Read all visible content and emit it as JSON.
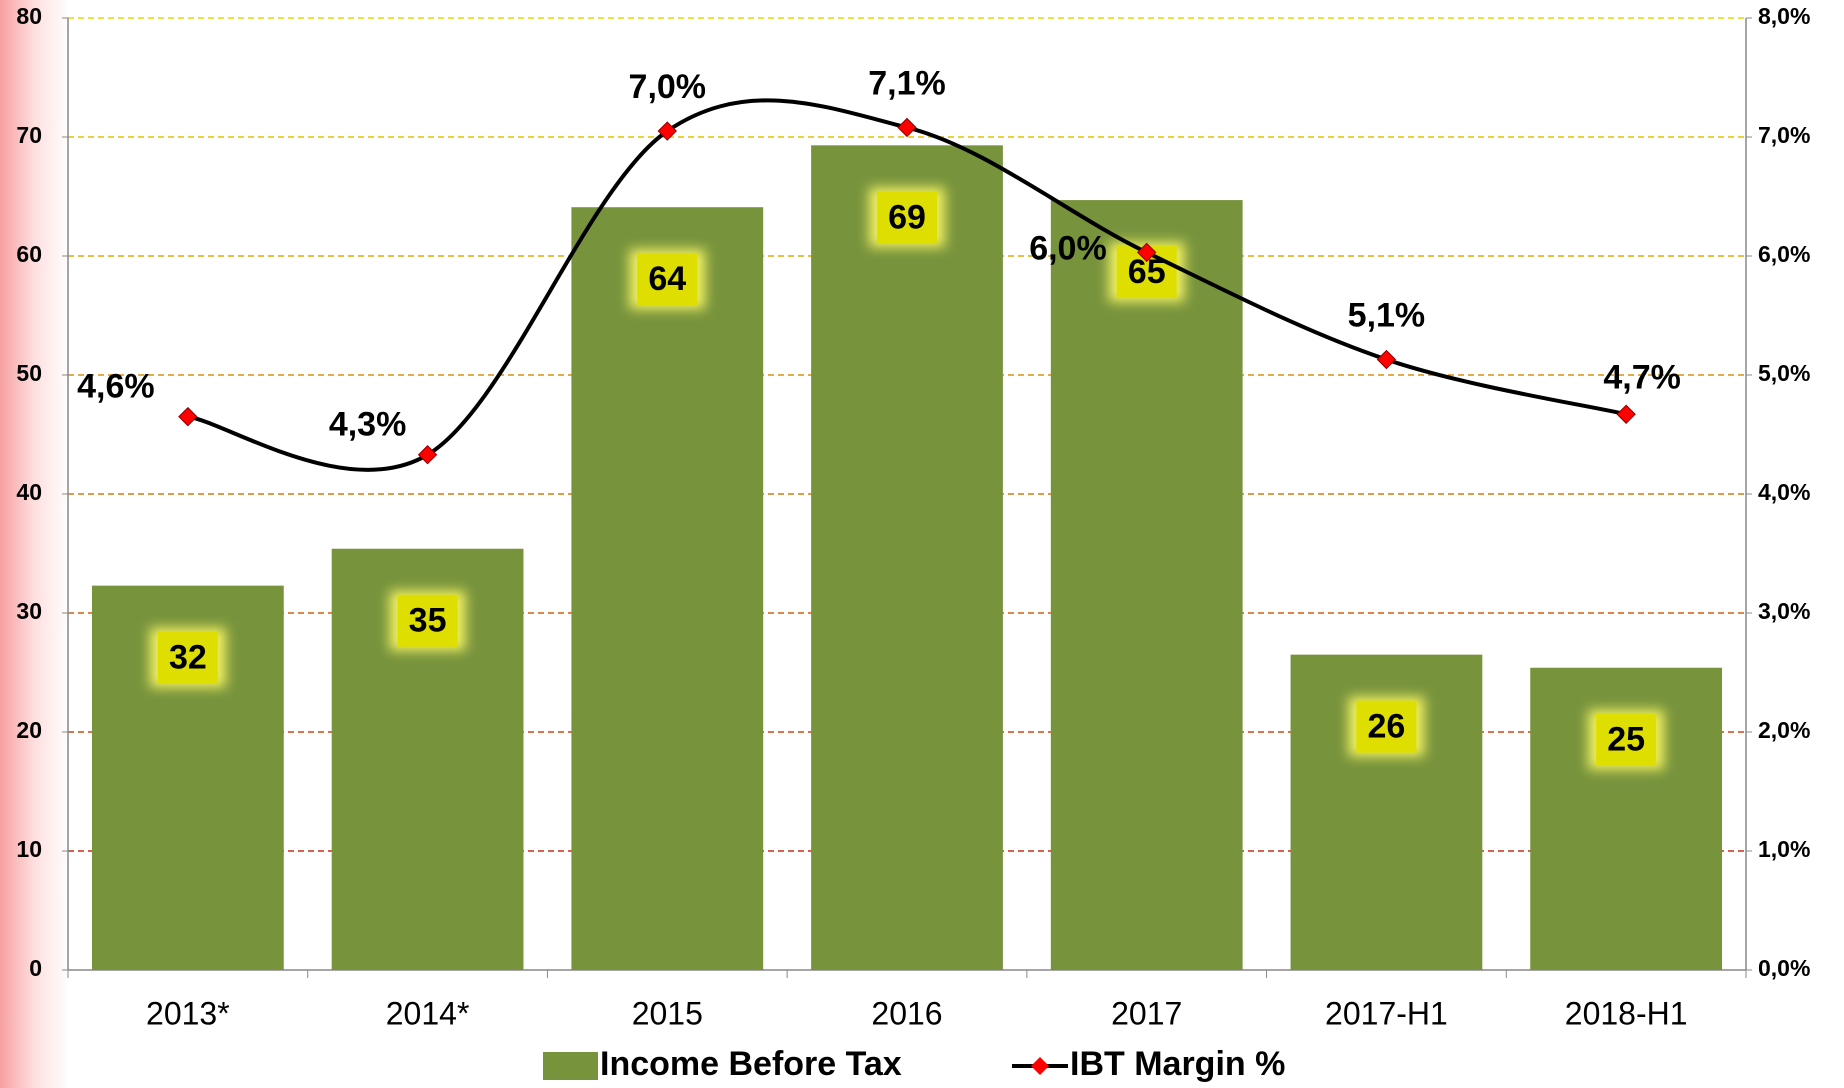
{
  "chart_data": {
    "type": "bar_line",
    "categories": [
      "2013*",
      "2014*",
      "2015",
      "2016",
      "2017",
      "2017-H1",
      "2018-H1"
    ],
    "series": [
      {
        "name": "Income Before Tax",
        "type": "bar",
        "color": "#77933c",
        "values": [
          32.3,
          35.4,
          64.1,
          69.3,
          64.7,
          26.5,
          25.4
        ],
        "value_labels": [
          "32",
          "35",
          "64",
          "69",
          "65",
          "26",
          "25"
        ]
      },
      {
        "name": "IBT Margin %",
        "type": "line",
        "axis": "y2",
        "color": "#000000",
        "marker_color": "#ff0000",
        "smooth": true,
        "values": [
          4.65,
          4.33,
          7.05,
          7.08,
          6.03,
          5.13,
          4.67
        ],
        "value_labels": [
          "4,6%",
          "4,3%",
          "7,0%",
          "7,1%",
          "6,0%",
          "5,1%",
          "4,7%"
        ]
      }
    ],
    "ylim": [
      0,
      80
    ],
    "yticks": [
      0,
      10,
      20,
      30,
      40,
      50,
      60,
      70,
      80
    ],
    "y2lim": [
      0,
      8
    ],
    "y2ticks": [
      {
        "value": 0,
        "label": "0,0%"
      },
      {
        "value": 1,
        "label": "1,0%"
      },
      {
        "value": 2,
        "label": "2,0%"
      },
      {
        "value": 3,
        "label": "3,0%"
      },
      {
        "value": 4,
        "label": "4,0%"
      },
      {
        "value": 5,
        "label": "5,0%"
      },
      {
        "value": 6,
        "label": "6,0%"
      },
      {
        "value": 7,
        "label": "7,0%"
      },
      {
        "value": 8,
        "label": "8,0%"
      }
    ],
    "grid": true,
    "legend": "bottom"
  }
}
